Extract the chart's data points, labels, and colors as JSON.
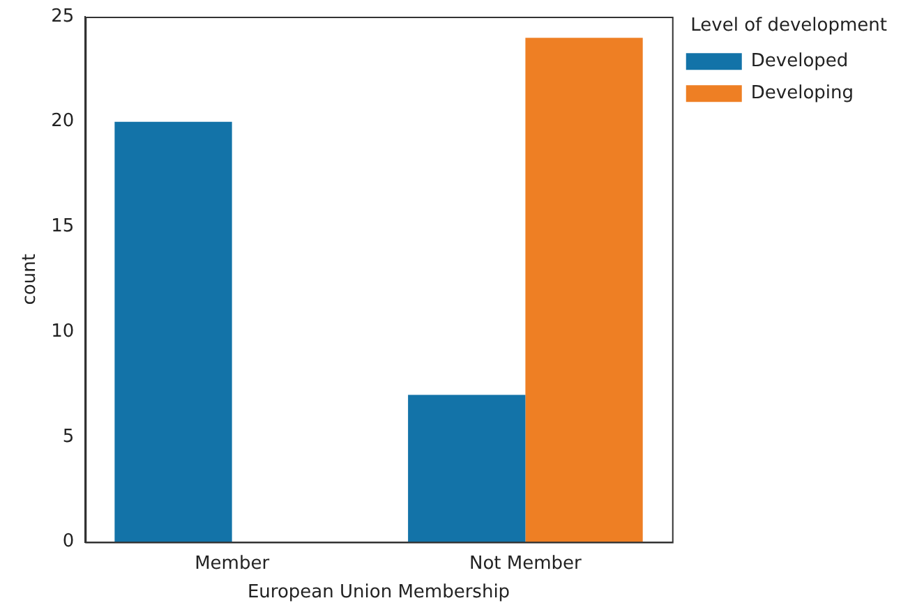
{
  "chart_data": {
    "type": "bar",
    "xlabel": "European Union Membership",
    "ylabel": "count",
    "legend_title": "Level of development",
    "categories": [
      "Member",
      "Not Member"
    ],
    "series": [
      {
        "name": "Developed",
        "color": "#1373a8",
        "values": [
          20,
          7
        ]
      },
      {
        "name": "Developing",
        "color": "#ee7f24",
        "values": [
          0,
          24
        ]
      }
    ],
    "ylim": [
      0,
      25
    ],
    "yticks": [
      0,
      5,
      10,
      15,
      20,
      25
    ],
    "grid": false,
    "legend": "right"
  }
}
